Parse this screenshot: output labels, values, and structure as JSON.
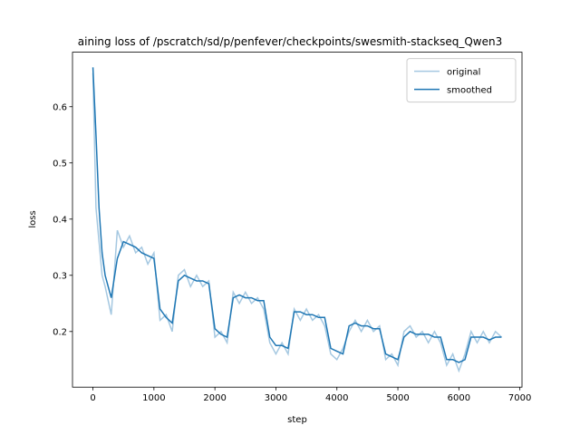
{
  "chart_data": {
    "type": "line",
    "title": "aining loss of /pscratch/sd/p/penfever/checkpoints/swesmith-stackseq_Qwen3",
    "x_label": "step",
    "y_label": "loss",
    "x": [
      0,
      50,
      100,
      150,
      200,
      300,
      400,
      500,
      600,
      700,
      800,
      900,
      1000,
      1100,
      1200,
      1300,
      1400,
      1500,
      1600,
      1700,
      1800,
      1900,
      2000,
      2100,
      2200,
      2300,
      2400,
      2500,
      2600,
      2700,
      2800,
      2900,
      3000,
      3100,
      3200,
      3300,
      3400,
      3500,
      3600,
      3700,
      3800,
      3900,
      4000,
      4100,
      4200,
      4300,
      4400,
      4500,
      4600,
      4700,
      4800,
      4900,
      5000,
      5100,
      5200,
      5300,
      5400,
      5500,
      5600,
      5700,
      5800,
      5900,
      6000,
      6100,
      6200,
      6300,
      6400,
      6500,
      6600,
      6700
    ],
    "series": [
      {
        "name": "original",
        "color": "#a5c8e1",
        "values": [
          0.66,
          0.42,
          0.36,
          0.3,
          0.28,
          0.23,
          0.38,
          0.35,
          0.37,
          0.34,
          0.35,
          0.32,
          0.34,
          0.22,
          0.23,
          0.2,
          0.3,
          0.31,
          0.28,
          0.3,
          0.28,
          0.29,
          0.19,
          0.2,
          0.18,
          0.27,
          0.25,
          0.27,
          0.25,
          0.26,
          0.24,
          0.18,
          0.16,
          0.18,
          0.16,
          0.24,
          0.22,
          0.24,
          0.22,
          0.23,
          0.21,
          0.16,
          0.15,
          0.17,
          0.2,
          0.22,
          0.2,
          0.22,
          0.2,
          0.21,
          0.15,
          0.16,
          0.14,
          0.2,
          0.21,
          0.19,
          0.2,
          0.18,
          0.2,
          0.18,
          0.14,
          0.16,
          0.13,
          0.16,
          0.2,
          0.18,
          0.2,
          0.18,
          0.2,
          0.19
        ]
      },
      {
        "name": "smoothed",
        "color": "#1f77b4",
        "values": [
          0.67,
          0.55,
          0.42,
          0.34,
          0.3,
          0.26,
          0.33,
          0.36,
          0.355,
          0.35,
          0.34,
          0.335,
          0.33,
          0.24,
          0.225,
          0.215,
          0.29,
          0.3,
          0.295,
          0.29,
          0.29,
          0.285,
          0.205,
          0.195,
          0.19,
          0.26,
          0.265,
          0.26,
          0.26,
          0.255,
          0.255,
          0.19,
          0.175,
          0.175,
          0.17,
          0.235,
          0.235,
          0.23,
          0.23,
          0.225,
          0.225,
          0.17,
          0.165,
          0.16,
          0.21,
          0.215,
          0.21,
          0.21,
          0.205,
          0.205,
          0.16,
          0.155,
          0.15,
          0.19,
          0.2,
          0.195,
          0.195,
          0.195,
          0.19,
          0.19,
          0.15,
          0.15,
          0.145,
          0.15,
          0.19,
          0.19,
          0.19,
          0.185,
          0.19,
          0.19
        ]
      }
    ],
    "xlim": [
      -335,
      7035
    ],
    "ylim": [
      0.101,
      0.697
    ],
    "xticks": [
      0,
      1000,
      2000,
      3000,
      4000,
      5000,
      6000,
      7000
    ],
    "yticks": [
      0.2,
      0.3,
      0.4,
      0.5,
      0.6
    ],
    "grid": false,
    "legend": "upper right"
  }
}
